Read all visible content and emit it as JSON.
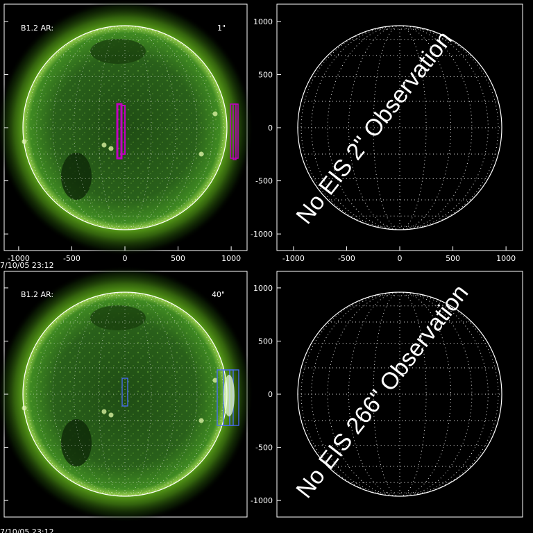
{
  "axes": {
    "ticks": [
      "-1000",
      "-500",
      "0",
      "500",
      "1000"
    ],
    "tick_values": [
      -1000,
      -500,
      0,
      500,
      1000
    ],
    "range": [
      -1150,
      1150
    ]
  },
  "panels": [
    {
      "type": "sun",
      "label": "B1.2  AR:",
      "note": "1\"",
      "note_color": "#b000b0",
      "timestamp": "7/10/05 23:12",
      "box_color": "#c000c0"
    },
    {
      "type": "grid",
      "message": "No EIS 2\" Observation"
    },
    {
      "type": "sun",
      "label": "B1.2  AR:",
      "note": "40\"",
      "note_color": "#5a78ff",
      "timestamp": "7/10/05 23:12",
      "box_color": "#4a6cff"
    },
    {
      "type": "grid",
      "message": "No EIS 266\" Observation"
    }
  ],
  "colors": {
    "disk_center": "#1c4a12",
    "disk_edge": "#3a7a1c",
    "corona": "#4a8a14",
    "limb": "#ffffff",
    "background": "#000000"
  }
}
